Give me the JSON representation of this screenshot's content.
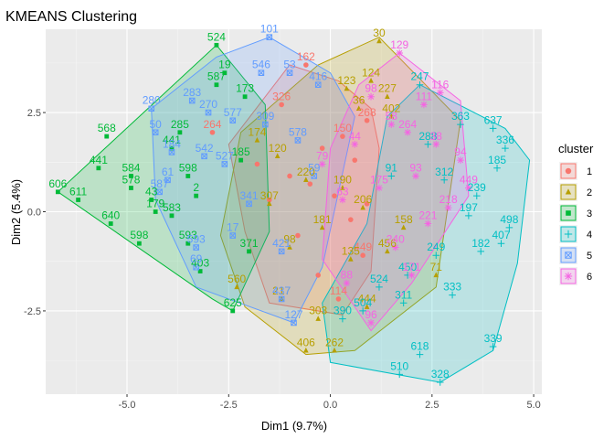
{
  "chart_data": {
    "type": "scatter",
    "title": "KMEANS Clustering",
    "xlabel": "Dim1 (9.7%)",
    "ylabel": "Dim2 (5.4%)",
    "xlim": [
      -7.0,
      5.2
    ],
    "ylim": [
      -4.6,
      4.6
    ],
    "x_ticks": [
      -5.0,
      -2.5,
      0.0,
      2.5,
      5.0
    ],
    "x_tick_labels": [
      "-5.0",
      "-2.5",
      "0.0",
      "2.5",
      "5.0"
    ],
    "y_ticks": [
      -2.5,
      0.0,
      2.5
    ],
    "y_tick_labels": [
      "-2.5",
      "0.0",
      "2.5"
    ],
    "grid": true,
    "legend": {
      "title": "cluster",
      "placement": "right"
    },
    "series": [
      {
        "name": "1",
        "color": "#F8766D",
        "shape": "circle",
        "hull": [
          [
            -1.0,
            3.7
          ],
          [
            0.2,
            3.3
          ],
          [
            1.0,
            2.6
          ],
          [
            1.2,
            1.6
          ],
          [
            1.0,
            -1.5
          ],
          [
            0.3,
            -2.6
          ],
          [
            -1.5,
            -2.3
          ],
          [
            -2.1,
            -0.5
          ],
          [
            -2.5,
            1.7
          ]
        ],
        "points": [
          {
            "x": -0.6,
            "y": 3.7,
            "label": "162"
          },
          {
            "x": -1.2,
            "y": 2.7,
            "label": "326"
          },
          {
            "x": 0.9,
            "y": 2.3,
            "label": "268"
          },
          {
            "x": -2.9,
            "y": 2.0,
            "label": "264"
          },
          {
            "x": 0.3,
            "y": 1.9,
            "label": "150"
          },
          {
            "x": -1.0,
            "y": 0.9,
            "label": ""
          },
          {
            "x": -0.5,
            "y": 0.7,
            "label": ""
          },
          {
            "x": 0.1,
            "y": 0.4,
            "label": ""
          },
          {
            "x": -1.5,
            "y": 0.3,
            "label": ""
          },
          {
            "x": 0.5,
            "y": -0.2,
            "label": ""
          },
          {
            "x": -0.8,
            "y": -0.6,
            "label": ""
          },
          {
            "x": 0.8,
            "y": -1.1,
            "label": "449"
          },
          {
            "x": -0.3,
            "y": -1.6,
            "label": ""
          },
          {
            "x": 0.2,
            "y": -2.2,
            "label": "114"
          },
          {
            "x": 0.6,
            "y": 1.3,
            "label": ""
          },
          {
            "x": -1.8,
            "y": 1.2,
            "label": ""
          },
          {
            "x": 0.9,
            "y": 0.2,
            "label": ""
          },
          {
            "x": -0.2,
            "y": 1.6,
            "label": ""
          }
        ]
      },
      {
        "name": "2",
        "color": "#B79F00",
        "shape": "triangle",
        "hull": [
          [
            1.2,
            4.4
          ],
          [
            3.2,
            2.3
          ],
          [
            2.6,
            -1.9
          ],
          [
            0.6,
            -3.5
          ],
          [
            -0.6,
            -3.6
          ],
          [
            -2.1,
            -2.4
          ],
          [
            -2.7,
            -0.6
          ],
          [
            -2.2,
            2.0
          ],
          [
            -0.3,
            3.7
          ]
        ],
        "points": [
          {
            "x": 1.2,
            "y": 4.3,
            "label": "30"
          },
          {
            "x": 1.0,
            "y": 3.3,
            "label": "124"
          },
          {
            "x": 1.4,
            "y": 2.9,
            "label": "227"
          },
          {
            "x": 0.4,
            "y": 3.1,
            "label": "123"
          },
          {
            "x": 1.5,
            "y": 2.4,
            "label": "402"
          },
          {
            "x": 0.7,
            "y": 2.6,
            "label": "36"
          },
          {
            "x": -1.8,
            "y": 1.8,
            "label": "174"
          },
          {
            "x": -1.3,
            "y": 1.4,
            "label": "120"
          },
          {
            "x": -0.6,
            "y": 0.8,
            "label": "220"
          },
          {
            "x": 0.3,
            "y": 0.6,
            "label": "190"
          },
          {
            "x": 0.8,
            "y": 0.1,
            "label": "206"
          },
          {
            "x": -0.2,
            "y": -0.4,
            "label": "181"
          },
          {
            "x": -1.0,
            "y": -0.9,
            "label": "98"
          },
          {
            "x": 0.5,
            "y": -1.2,
            "label": "135"
          },
          {
            "x": 1.4,
            "y": -1.0,
            "label": "456"
          },
          {
            "x": -2.3,
            "y": -1.9,
            "label": "560"
          },
          {
            "x": -1.2,
            "y": -2.2,
            "label": "217"
          },
          {
            "x": -0.3,
            "y": -2.7,
            "label": "303"
          },
          {
            "x": 0.1,
            "y": -3.5,
            "label": "262"
          },
          {
            "x": -0.6,
            "y": -3.5,
            "label": "406"
          },
          {
            "x": 0.9,
            "y": -2.4,
            "label": "444"
          },
          {
            "x": 1.8,
            "y": -0.4,
            "label": "158"
          },
          {
            "x": 2.6,
            "y": -1.6,
            "label": "71"
          },
          {
            "x": -1.5,
            "y": 0.2,
            "label": "307"
          }
        ]
      },
      {
        "name": "3",
        "color": "#00BA38",
        "shape": "square",
        "hull": [
          [
            -2.8,
            4.2
          ],
          [
            -1.6,
            2.7
          ],
          [
            -1.5,
            -0.5
          ],
          [
            -2.4,
            -2.5
          ],
          [
            -2.9,
            -2.2
          ],
          [
            -6.7,
            0.5
          ]
        ],
        "points": [
          {
            "x": -2.8,
            "y": 4.2,
            "label": "524"
          },
          {
            "x": -2.6,
            "y": 3.5,
            "label": "19"
          },
          {
            "x": -2.8,
            "y": 3.2,
            "label": "587"
          },
          {
            "x": -2.1,
            "y": 2.9,
            "label": "173"
          },
          {
            "x": -5.5,
            "y": 1.9,
            "label": "568"
          },
          {
            "x": -3.7,
            "y": 2.0,
            "label": "285"
          },
          {
            "x": -6.7,
            "y": 0.5,
            "label": "606"
          },
          {
            "x": -6.2,
            "y": 0.3,
            "label": "611"
          },
          {
            "x": -5.7,
            "y": 1.1,
            "label": "441"
          },
          {
            "x": -4.9,
            "y": 0.9,
            "label": "584"
          },
          {
            "x": -4.9,
            "y": 0.6,
            "label": "578"
          },
          {
            "x": -4.4,
            "y": 0.3,
            "label": "43"
          },
          {
            "x": -3.5,
            "y": 0.9,
            "label": "598"
          },
          {
            "x": -3.9,
            "y": 1.6,
            "label": "441"
          },
          {
            "x": -5.4,
            "y": -0.3,
            "label": "640"
          },
          {
            "x": -4.7,
            "y": -0.8,
            "label": "598"
          },
          {
            "x": -4.3,
            "y": 0.0,
            "label": "179"
          },
          {
            "x": -3.9,
            "y": -0.1,
            "label": "583"
          },
          {
            "x": -3.5,
            "y": -0.8,
            "label": "593"
          },
          {
            "x": -3.2,
            "y": -1.5,
            "label": "403"
          },
          {
            "x": -2.4,
            "y": -2.5,
            "label": "625"
          },
          {
            "x": -2.2,
            "y": 1.3,
            "label": "185"
          },
          {
            "x": -2.0,
            "y": -1.0,
            "label": "371"
          },
          {
            "x": -3.3,
            "y": 0.4,
            "label": "2"
          }
        ]
      },
      {
        "name": "4",
        "color": "#00BFC4",
        "shape": "plus",
        "hull": [
          [
            2.2,
            3.2
          ],
          [
            4.3,
            2.1
          ],
          [
            4.9,
            1.3
          ],
          [
            4.6,
            -1.3
          ],
          [
            4.0,
            -3.5
          ],
          [
            2.7,
            -4.3
          ],
          [
            0.0,
            -3.8
          ],
          [
            -0.2,
            -2.3
          ],
          [
            0.9,
            -0.3
          ],
          [
            1.4,
            2.4
          ]
        ],
        "points": [
          {
            "x": 2.2,
            "y": 3.2,
            "label": "247"
          },
          {
            "x": 4.0,
            "y": 2.1,
            "label": "637"
          },
          {
            "x": 3.2,
            "y": 2.2,
            "label": "363"
          },
          {
            "x": 4.3,
            "y": 1.6,
            "label": "336"
          },
          {
            "x": 4.1,
            "y": 1.1,
            "label": "185"
          },
          {
            "x": 2.8,
            "y": 0.8,
            "label": "312"
          },
          {
            "x": 3.4,
            "y": -0.1,
            "label": "197"
          },
          {
            "x": 4.4,
            "y": -0.4,
            "label": "498"
          },
          {
            "x": 4.2,
            "y": -0.8,
            "label": "407"
          },
          {
            "x": 3.7,
            "y": -1.0,
            "label": "182"
          },
          {
            "x": 2.6,
            "y": -1.1,
            "label": "249"
          },
          {
            "x": 1.9,
            "y": -1.6,
            "label": "450"
          },
          {
            "x": 3.0,
            "y": -2.1,
            "label": "333"
          },
          {
            "x": 1.8,
            "y": -2.3,
            "label": "311"
          },
          {
            "x": 0.8,
            "y": -2.5,
            "label": "504"
          },
          {
            "x": 4.0,
            "y": -3.4,
            "label": "339"
          },
          {
            "x": 2.2,
            "y": -3.6,
            "label": "618"
          },
          {
            "x": 1.7,
            "y": -4.1,
            "label": "510"
          },
          {
            "x": 2.7,
            "y": -4.3,
            "label": "328"
          },
          {
            "x": 1.2,
            "y": -1.9,
            "label": "524"
          },
          {
            "x": 0.3,
            "y": -2.7,
            "label": "390"
          },
          {
            "x": 2.4,
            "y": 1.7,
            "label": "288"
          },
          {
            "x": 3.6,
            "y": 0.4,
            "label": "239"
          },
          {
            "x": 1.5,
            "y": 0.9,
            "label": "91"
          }
        ]
      },
      {
        "name": "5",
        "color": "#619CFF",
        "shape": "squarex",
        "hull": [
          [
            -1.5,
            4.4
          ],
          [
            0.0,
            3.5
          ],
          [
            0.6,
            2.4
          ],
          [
            -0.2,
            -1.4
          ],
          [
            -0.9,
            -2.8
          ],
          [
            -3.3,
            -1.9
          ],
          [
            -4.3,
            0.3
          ],
          [
            -4.4,
            2.6
          ],
          [
            -2.8,
            3.9
          ]
        ],
        "points": [
          {
            "x": -1.5,
            "y": 4.4,
            "label": "101"
          },
          {
            "x": -1.7,
            "y": 3.5,
            "label": "546"
          },
          {
            "x": -1.0,
            "y": 3.5,
            "label": "53"
          },
          {
            "x": -0.3,
            "y": 3.2,
            "label": "416"
          },
          {
            "x": -4.4,
            "y": 2.6,
            "label": "280"
          },
          {
            "x": -3.4,
            "y": 2.8,
            "label": "283"
          },
          {
            "x": -3.0,
            "y": 2.5,
            "label": "270"
          },
          {
            "x": -2.4,
            "y": 2.3,
            "label": "577"
          },
          {
            "x": -4.3,
            "y": 2.0,
            "label": "50"
          },
          {
            "x": -3.9,
            "y": 1.5,
            "label": "184"
          },
          {
            "x": -3.1,
            "y": 1.4,
            "label": "542"
          },
          {
            "x": -4.0,
            "y": 0.8,
            "label": "61"
          },
          {
            "x": -4.2,
            "y": 0.5,
            "label": "587"
          },
          {
            "x": -3.3,
            "y": -0.9,
            "label": "593"
          },
          {
            "x": -3.3,
            "y": -1.4,
            "label": "69"
          },
          {
            "x": -1.2,
            "y": -2.2,
            "label": "437"
          },
          {
            "x": -0.9,
            "y": -2.8,
            "label": "127"
          },
          {
            "x": -2.6,
            "y": 1.2,
            "label": "527"
          },
          {
            "x": -0.8,
            "y": 1.8,
            "label": "578"
          },
          {
            "x": -2.0,
            "y": 0.2,
            "label": "341"
          },
          {
            "x": -1.2,
            "y": -1.0,
            "label": "421"
          },
          {
            "x": -0.4,
            "y": 0.9,
            "label": "59"
          },
          {
            "x": -2.4,
            "y": -0.6,
            "label": "17"
          },
          {
            "x": -1.6,
            "y": 2.2,
            "label": "309"
          }
        ]
      },
      {
        "name": "6",
        "color": "#F564E3",
        "shape": "star",
        "hull": [
          [
            1.7,
            4.0
          ],
          [
            3.2,
            2.8
          ],
          [
            3.4,
            0.4
          ],
          [
            2.0,
            -1.8
          ],
          [
            1.0,
            -3.0
          ],
          [
            -0.2,
            -1.2
          ],
          [
            0.0,
            1.6
          ],
          [
            0.7,
            3.2
          ]
        ],
        "points": [
          {
            "x": 1.7,
            "y": 4.0,
            "label": "129"
          },
          {
            "x": 2.7,
            "y": 3.0,
            "label": "116"
          },
          {
            "x": 2.3,
            "y": 2.7,
            "label": "111"
          },
          {
            "x": 1.0,
            "y": 2.9,
            "label": "98"
          },
          {
            "x": 1.5,
            "y": 2.2,
            "label": "58"
          },
          {
            "x": 2.6,
            "y": 1.7,
            "label": "38"
          },
          {
            "x": 3.2,
            "y": 1.3,
            "label": "94"
          },
          {
            "x": 3.4,
            "y": 0.6,
            "label": "449"
          },
          {
            "x": 2.1,
            "y": 0.9,
            "label": "93"
          },
          {
            "x": 1.2,
            "y": 0.6,
            "label": "175"
          },
          {
            "x": 0.3,
            "y": 0.3,
            "label": "63"
          },
          {
            "x": 2.4,
            "y": -0.3,
            "label": "221"
          },
          {
            "x": 1.6,
            "y": -0.9,
            "label": "240"
          },
          {
            "x": 2.0,
            "y": -1.6,
            "label": "171"
          },
          {
            "x": 1.0,
            "y": -2.8,
            "label": "96"
          },
          {
            "x": 0.4,
            "y": -1.8,
            "label": "88"
          },
          {
            "x": -0.2,
            "y": 1.2,
            "label": "79"
          },
          {
            "x": 0.6,
            "y": 1.7,
            "label": "44"
          },
          {
            "x": 1.9,
            "y": 2.0,
            "label": "264"
          },
          {
            "x": 2.9,
            "y": 0.1,
            "label": "218"
          }
        ]
      }
    ]
  }
}
